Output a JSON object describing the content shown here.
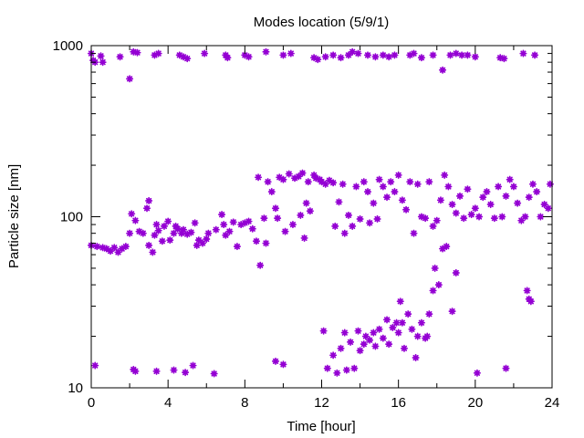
{
  "chart_data": {
    "type": "scatter",
    "title": "Modes location (5/9/1)",
    "xlabel": "Time [hour]",
    "ylabel": "Particle size [nm]",
    "xlim": [
      0,
      24
    ],
    "ylim": [
      10,
      1000
    ],
    "yscale": "log",
    "x_ticks": [
      0,
      4,
      8,
      12,
      16,
      20,
      24
    ],
    "y_ticks": [
      10,
      100,
      1000
    ],
    "x_tick_labels": [
      "0",
      "4",
      "8",
      "12",
      "16",
      "20",
      "24"
    ],
    "y_tick_labels": [
      "10",
      "100",
      "1000"
    ],
    "grid": false,
    "legend": "none",
    "marker": "asterisk",
    "color": "#9400d3",
    "series": [
      {
        "points": [
          [
            0.0,
            900
          ],
          [
            0.1,
            820
          ],
          [
            0.2,
            800
          ],
          [
            0.5,
            870
          ],
          [
            0.6,
            800
          ],
          [
            1.5,
            860
          ],
          [
            2.0,
            640
          ],
          [
            2.2,
            920
          ],
          [
            2.4,
            910
          ],
          [
            3.3,
            880
          ],
          [
            3.5,
            900
          ],
          [
            4.6,
            880
          ],
          [
            4.8,
            860
          ],
          [
            5.0,
            840
          ],
          [
            5.9,
            900
          ],
          [
            7.0,
            880
          ],
          [
            7.1,
            850
          ],
          [
            8.0,
            880
          ],
          [
            8.2,
            860
          ],
          [
            9.1,
            920
          ],
          [
            10.0,
            880
          ],
          [
            10.4,
            900
          ],
          [
            11.6,
            850
          ],
          [
            11.8,
            830
          ],
          [
            12.2,
            860
          ],
          [
            12.6,
            880
          ],
          [
            13.0,
            850
          ],
          [
            13.4,
            880
          ],
          [
            13.6,
            920
          ],
          [
            13.9,
            900
          ],
          [
            14.4,
            880
          ],
          [
            14.8,
            860
          ],
          [
            15.2,
            880
          ],
          [
            15.5,
            860
          ],
          [
            15.8,
            880
          ],
          [
            16.6,
            880
          ],
          [
            16.8,
            900
          ],
          [
            17.2,
            850
          ],
          [
            17.8,
            880
          ],
          [
            18.3,
            720
          ],
          [
            18.7,
            880
          ],
          [
            19.0,
            900
          ],
          [
            19.3,
            880
          ],
          [
            19.6,
            880
          ],
          [
            20.0,
            860
          ],
          [
            21.3,
            850
          ],
          [
            21.5,
            840
          ],
          [
            22.5,
            900
          ],
          [
            23.1,
            880
          ],
          [
            0.0,
            68
          ],
          [
            0.3,
            67
          ],
          [
            0.6,
            66
          ],
          [
            0.8,
            65
          ],
          [
            1.0,
            63
          ],
          [
            1.2,
            66
          ],
          [
            1.4,
            62
          ],
          [
            1.6,
            65
          ],
          [
            1.8,
            67
          ],
          [
            2.0,
            80
          ],
          [
            2.1,
            104
          ],
          [
            2.3,
            95
          ],
          [
            2.5,
            82
          ],
          [
            2.7,
            80
          ],
          [
            2.9,
            112
          ],
          [
            3.0,
            124
          ],
          [
            3.0,
            68
          ],
          [
            3.2,
            62
          ],
          [
            3.3,
            78
          ],
          [
            3.4,
            90
          ],
          [
            3.5,
            83
          ],
          [
            3.7,
            72
          ],
          [
            3.8,
            88
          ],
          [
            4.0,
            94
          ],
          [
            4.1,
            73
          ],
          [
            4.3,
            80
          ],
          [
            4.4,
            88
          ],
          [
            4.5,
            85
          ],
          [
            4.7,
            80
          ],
          [
            4.8,
            84
          ],
          [
            5.0,
            79
          ],
          [
            5.2,
            81
          ],
          [
            5.4,
            92
          ],
          [
            5.5,
            68
          ],
          [
            5.6,
            73
          ],
          [
            5.8,
            70
          ],
          [
            6.0,
            74
          ],
          [
            6.1,
            80
          ],
          [
            6.5,
            84
          ],
          [
            6.8,
            103
          ],
          [
            6.9,
            90
          ],
          [
            7.0,
            78
          ],
          [
            7.2,
            82
          ],
          [
            7.4,
            93
          ],
          [
            7.6,
            67
          ],
          [
            7.8,
            90
          ],
          [
            8.0,
            92
          ],
          [
            8.2,
            94
          ],
          [
            8.4,
            85
          ],
          [
            8.6,
            72
          ],
          [
            8.7,
            170
          ],
          [
            8.8,
            52
          ],
          [
            9.0,
            98
          ],
          [
            9.1,
            70
          ],
          [
            9.2,
            160
          ],
          [
            9.4,
            140
          ],
          [
            9.6,
            112
          ],
          [
            9.7,
            98
          ],
          [
            9.8,
            170
          ],
          [
            10.0,
            165
          ],
          [
            10.1,
            82
          ],
          [
            10.3,
            178
          ],
          [
            10.5,
            90
          ],
          [
            10.6,
            168
          ],
          [
            10.8,
            172
          ],
          [
            10.9,
            102
          ],
          [
            11.0,
            180
          ],
          [
            11.1,
            75
          ],
          [
            11.2,
            120
          ],
          [
            11.3,
            160
          ],
          [
            11.4,
            108
          ],
          [
            11.6,
            175
          ],
          [
            11.7,
            168
          ],
          [
            11.9,
            165
          ],
          [
            12.0,
            160
          ],
          [
            12.2,
            155
          ],
          [
            12.4,
            163
          ],
          [
            12.6,
            158
          ],
          [
            12.7,
            88
          ],
          [
            12.9,
            122
          ],
          [
            13.1,
            155
          ],
          [
            13.2,
            80
          ],
          [
            13.4,
            102
          ],
          [
            13.6,
            88
          ],
          [
            13.8,
            150
          ],
          [
            14.0,
            97
          ],
          [
            14.2,
            160
          ],
          [
            14.4,
            140
          ],
          [
            14.5,
            92
          ],
          [
            14.7,
            120
          ],
          [
            14.9,
            97
          ],
          [
            15.0,
            165
          ],
          [
            15.2,
            150
          ],
          [
            15.4,
            130
          ],
          [
            15.6,
            160
          ],
          [
            15.8,
            140
          ],
          [
            16.0,
            175
          ],
          [
            16.2,
            125
          ],
          [
            16.4,
            110
          ],
          [
            16.6,
            160
          ],
          [
            16.8,
            80
          ],
          [
            17.0,
            155
          ],
          [
            17.2,
            100
          ],
          [
            17.4,
            98
          ],
          [
            17.6,
            160
          ],
          [
            17.8,
            88
          ],
          [
            18.0,
            95
          ],
          [
            18.2,
            125
          ],
          [
            18.4,
            175
          ],
          [
            18.6,
            150
          ],
          [
            18.8,
            118
          ],
          [
            19.0,
            105
          ],
          [
            19.2,
            132
          ],
          [
            19.4,
            98
          ],
          [
            19.6,
            145
          ],
          [
            19.8,
            103
          ],
          [
            20.0,
            112
          ],
          [
            20.2,
            100
          ],
          [
            20.4,
            130
          ],
          [
            20.6,
            140
          ],
          [
            20.8,
            118
          ],
          [
            21.0,
            98
          ],
          [
            21.2,
            150
          ],
          [
            21.4,
            100
          ],
          [
            21.6,
            132
          ],
          [
            21.8,
            165
          ],
          [
            22.0,
            150
          ],
          [
            22.2,
            120
          ],
          [
            22.4,
            95
          ],
          [
            22.6,
            100
          ],
          [
            22.8,
            130
          ],
          [
            23.0,
            155
          ],
          [
            23.2,
            140
          ],
          [
            23.4,
            100
          ],
          [
            23.6,
            118
          ],
          [
            23.8,
            112
          ],
          [
            23.9,
            155
          ],
          [
            0.2,
            13.5
          ],
          [
            2.2,
            12.8
          ],
          [
            2.3,
            12.5
          ],
          [
            3.4,
            12.5
          ],
          [
            4.3,
            12.7
          ],
          [
            4.9,
            12.3
          ],
          [
            5.3,
            13.5
          ],
          [
            6.4,
            12.1
          ],
          [
            9.6,
            14.3
          ],
          [
            10.0,
            13.7
          ],
          [
            12.1,
            21.5
          ],
          [
            12.3,
            13.0
          ],
          [
            12.6,
            15.5
          ],
          [
            12.8,
            12.2
          ],
          [
            13.0,
            17.0
          ],
          [
            13.2,
            21.0
          ],
          [
            13.3,
            12.7
          ],
          [
            13.5,
            18.5
          ],
          [
            13.7,
            13.0
          ],
          [
            13.9,
            21.5
          ],
          [
            14.0,
            16.5
          ],
          [
            14.2,
            18.0
          ],
          [
            14.3,
            20.0
          ],
          [
            14.5,
            19.0
          ],
          [
            14.7,
            21.0
          ],
          [
            14.8,
            17.5
          ],
          [
            15.0,
            22.0
          ],
          [
            15.2,
            19.5
          ],
          [
            15.4,
            25.0
          ],
          [
            15.5,
            18.0
          ],
          [
            15.7,
            22.5
          ],
          [
            15.9,
            24.0
          ],
          [
            16.0,
            21.0
          ],
          [
            16.1,
            32.0
          ],
          [
            16.2,
            24.0
          ],
          [
            16.3,
            17.0
          ],
          [
            16.5,
            27.0
          ],
          [
            16.7,
            22.0
          ],
          [
            16.9,
            15.0
          ],
          [
            17.0,
            20.0
          ],
          [
            17.2,
            24.0
          ],
          [
            17.4,
            19.5
          ],
          [
            17.5,
            20.0
          ],
          [
            17.6,
            27.0
          ],
          [
            17.8,
            37.0
          ],
          [
            17.9,
            50.0
          ],
          [
            18.1,
            40.0
          ],
          [
            18.3,
            65.0
          ],
          [
            18.5,
            67.0
          ],
          [
            18.8,
            28.0
          ],
          [
            19.0,
            47.0
          ],
          [
            20.1,
            12.2
          ],
          [
            21.6,
            13.0
          ],
          [
            22.7,
            37.0
          ],
          [
            22.8,
            33.0
          ],
          [
            22.9,
            32.0
          ]
        ]
      }
    ]
  }
}
